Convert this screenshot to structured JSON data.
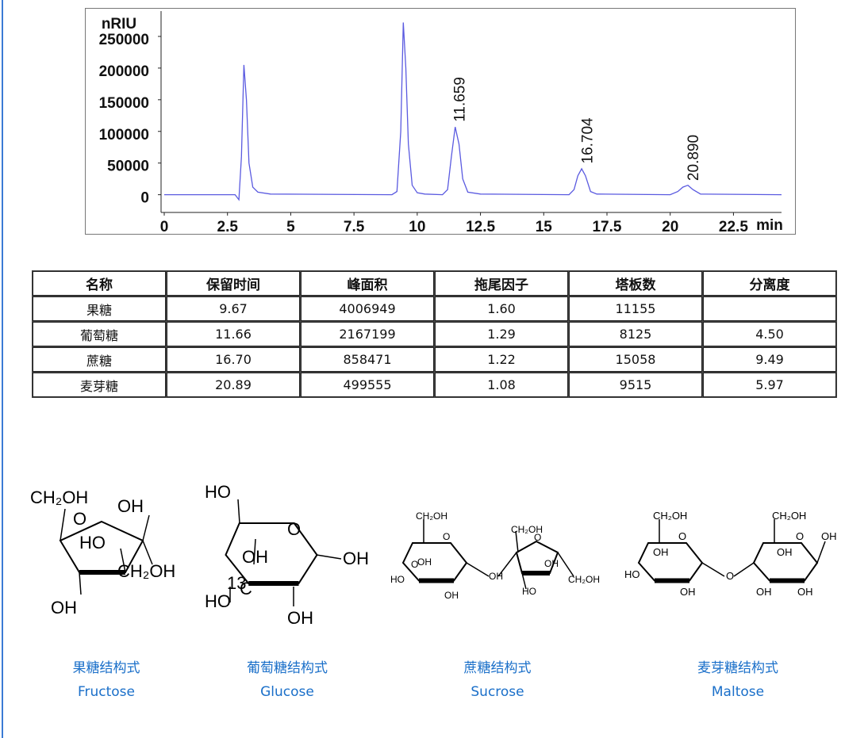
{
  "chart_data": {
    "type": "line",
    "y_label": "nRIU",
    "x_label": "min",
    "x": [
      0,
      2.8,
      2.95,
      3.05,
      3.15,
      3.25,
      3.35,
      3.5,
      3.7,
      4.2,
      9.0,
      9.2,
      9.35,
      9.45,
      9.55,
      9.65,
      9.8,
      10.0,
      10.3,
      11.0,
      11.2,
      11.35,
      11.5,
      11.65,
      11.8,
      12.0,
      12.5,
      16.0,
      16.2,
      16.35,
      16.5,
      16.65,
      16.85,
      17.1,
      20.0,
      20.3,
      20.5,
      20.7,
      20.9,
      21.2,
      24.4
    ],
    "series": [
      {
        "color": "#5a5ae0",
        "values": [
          0,
          0,
          -8000,
          60000,
          205000,
          150000,
          50000,
          12000,
          4000,
          1000,
          0,
          5000,
          100000,
          272000,
          200000,
          80000,
          15000,
          3000,
          1000,
          0,
          8000,
          60000,
          107000,
          80000,
          25000,
          4000,
          1000,
          0,
          8000,
          30000,
          41000,
          30000,
          5000,
          1000,
          0,
          5000,
          12000,
          15000,
          8000,
          1000,
          0
        ]
      }
    ],
    "annotations": [
      {
        "text": "11.659",
        "x": 11.659,
        "y": 115000
      },
      {
        "text": "16.704",
        "x": 16.704,
        "y": 49000
      },
      {
        "text": "20.890",
        "x": 20.89,
        "y": 22000
      }
    ],
    "xlim": [
      0,
      24.4
    ],
    "xticks": [
      0,
      2.5,
      5,
      7.5,
      10,
      12.5,
      15,
      17.5,
      20,
      22.5
    ],
    "ylim": [
      -28000,
      290000
    ],
    "yticks": [
      0,
      50000,
      100000,
      150000,
      200000,
      250000
    ]
  },
  "table": {
    "header": [
      "名称",
      "保留时间",
      "峰面积",
      "拖尾因子",
      "塔板数",
      "分离度"
    ],
    "rows": [
      [
        "果糖",
        "9.67",
        "4006949",
        "1.60",
        "11155",
        null
      ],
      [
        "葡萄糖",
        "11.66",
        "2167199",
        "1.29",
        "8125",
        "4.50"
      ],
      [
        "蔗糖",
        "16.70",
        "858471",
        "1.22",
        "15058",
        "9.49"
      ],
      [
        "麦芽糖",
        "20.89",
        "499555",
        "1.08",
        "9515",
        "5.97"
      ]
    ]
  },
  "structures": [
    {
      "labels": [
        "CH₂OH",
        "O",
        "OH",
        "HO",
        "CH₂OH",
        "OH"
      ],
      "caption_cn": "果糖结构式",
      "caption_en": "Fructose"
    },
    {
      "labels": [
        "HO",
        "O",
        "OH",
        "OH",
        "13",
        "C",
        "HO",
        "OH"
      ],
      "caption_cn": "葡萄糖结构式",
      "caption_en": "Glucose"
    },
    {
      "labels": [
        "CH₂OH",
        "O",
        "OH",
        "HO",
        "OH",
        "OH",
        "O",
        "CH₂OH",
        "O",
        "HO",
        "OH",
        "CH₂OH"
      ],
      "caption_cn": "蔗糖结构式",
      "caption_en": "Sucrose"
    },
    {
      "labels": [
        "CH₂OH",
        "O",
        "OH",
        "HO",
        "OH",
        "OH",
        "O",
        "CH₂OH",
        "O",
        "OH",
        "OH",
        "OH"
      ],
      "caption_cn": "麦芽糖结构式",
      "caption_en": "Maltose"
    }
  ]
}
